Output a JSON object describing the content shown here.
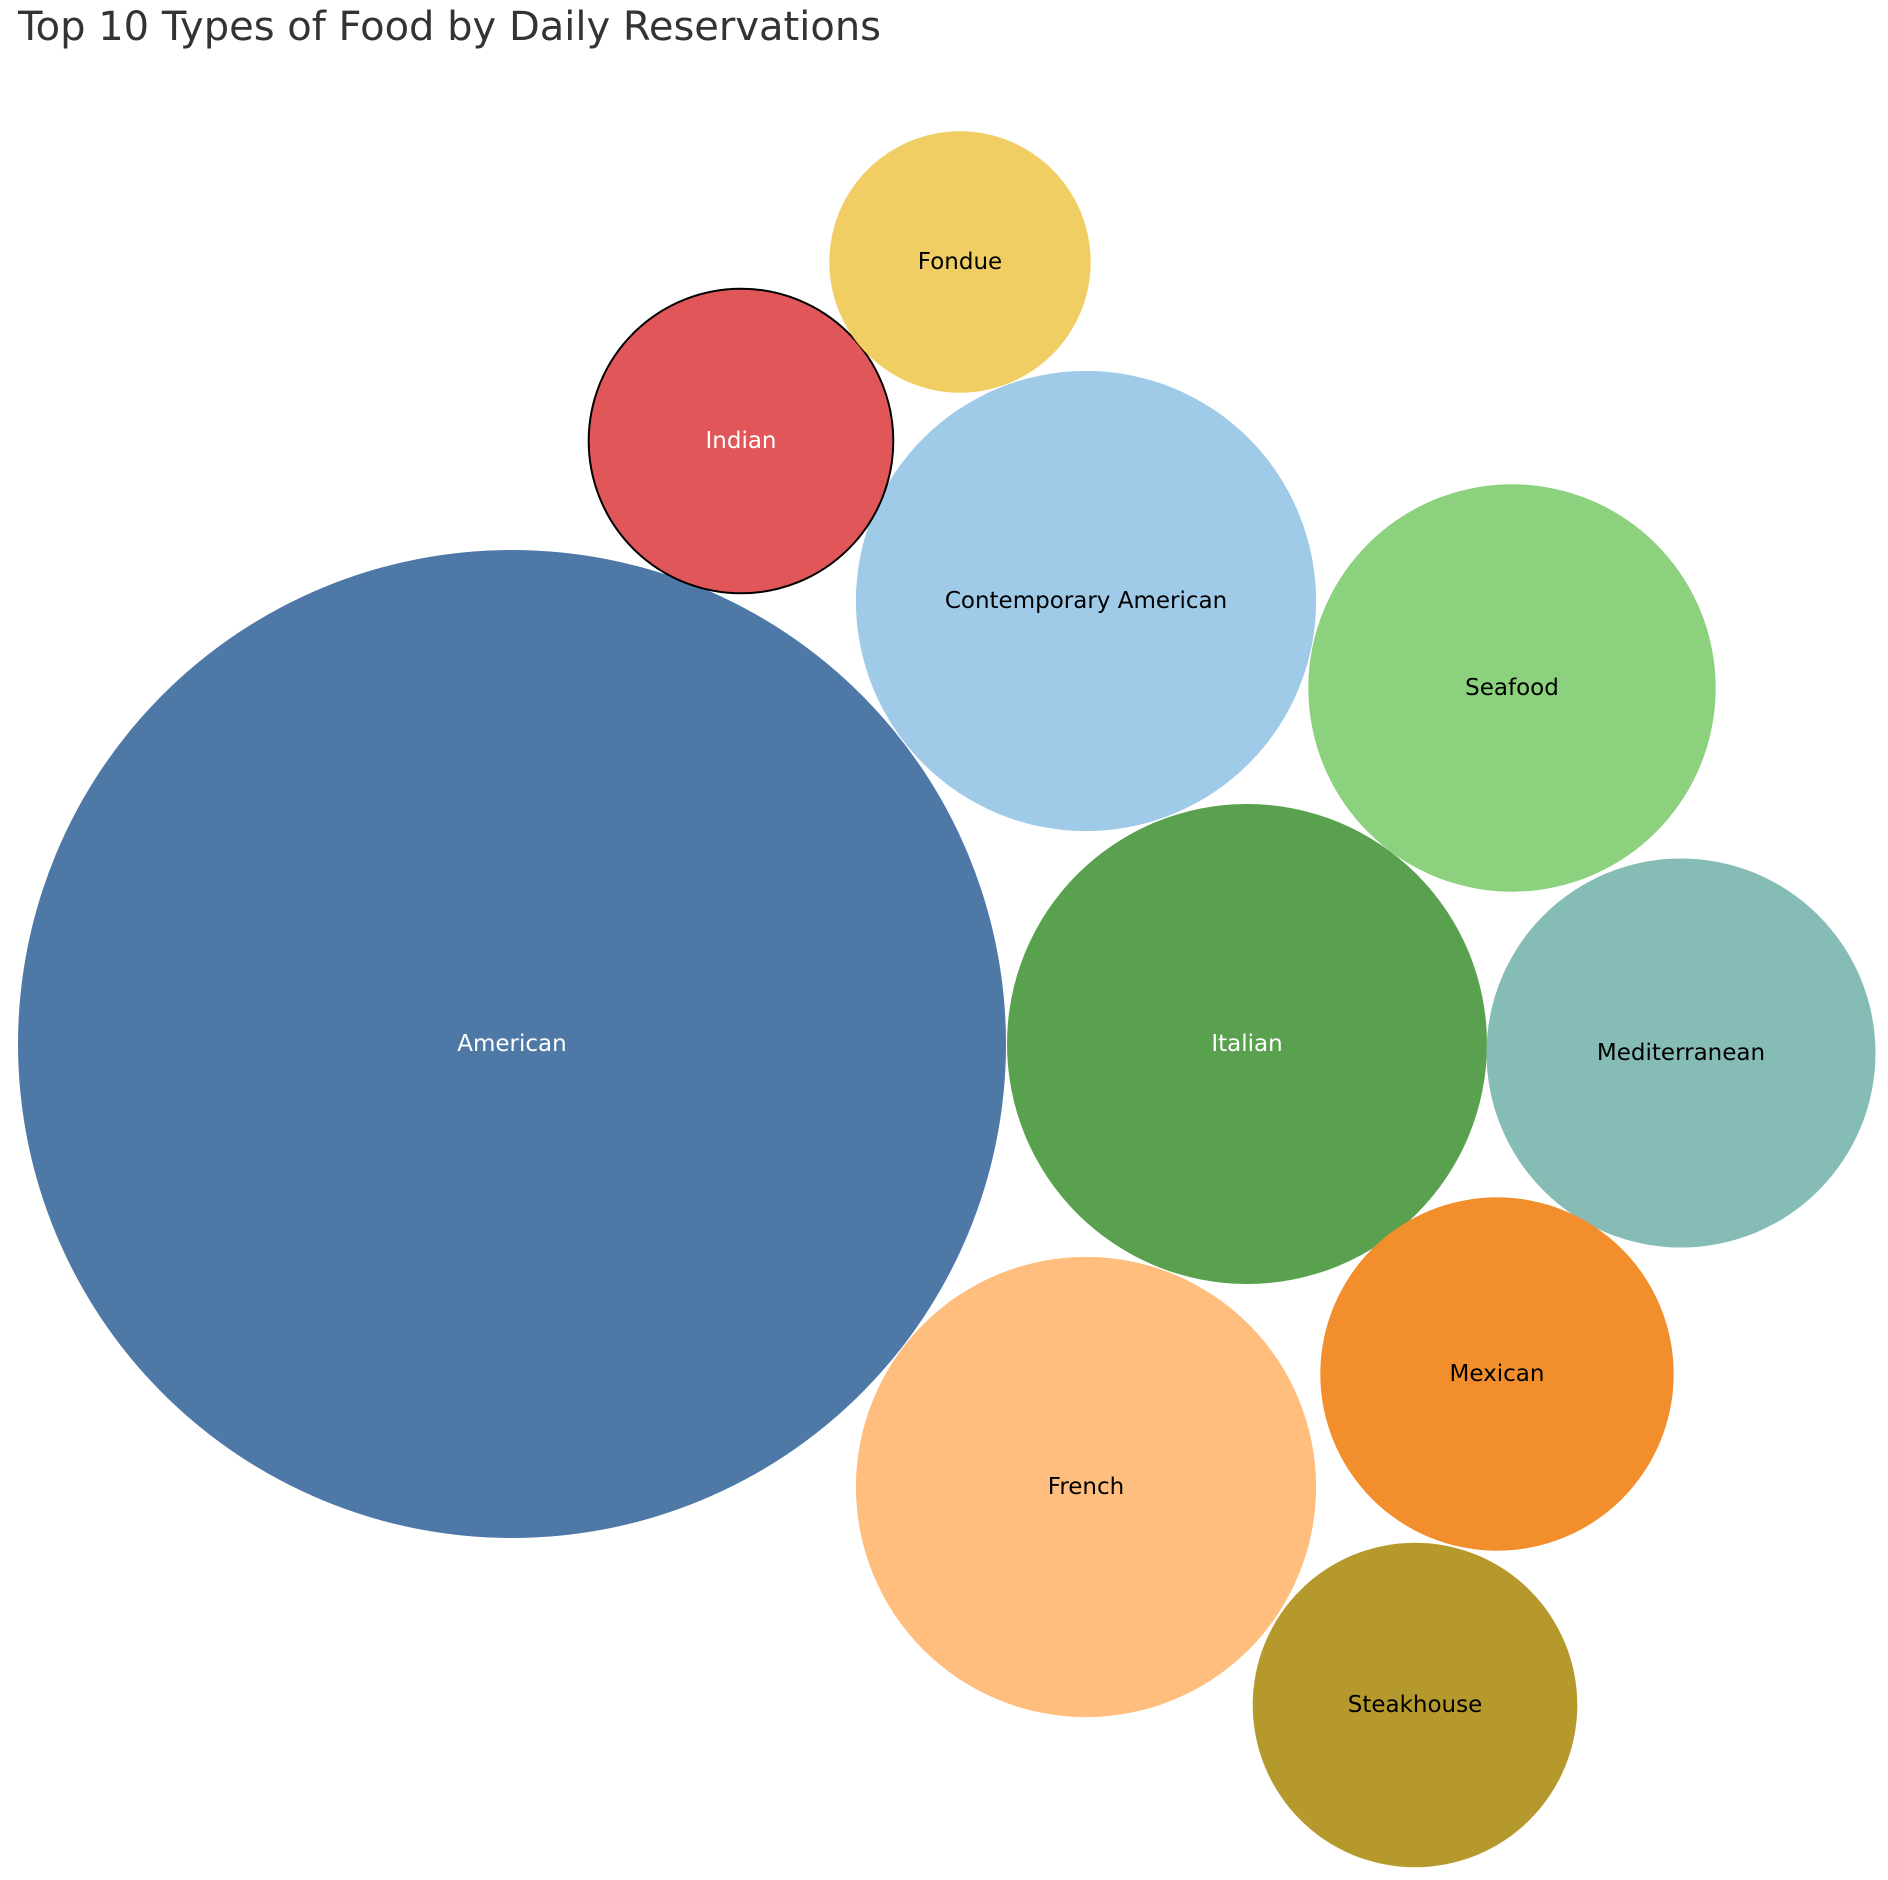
{
  "chart_data": {
    "type": "bubble",
    "title": "Top 10 Types of Food by Daily Reservations",
    "size_measure": "Daily Reservations",
    "categories": [
      "American",
      "Italian",
      "Contemporary American",
      "French",
      "Seafood",
      "Mediterranean",
      "Mexican",
      "Indian",
      "Steakhouse",
      "Fondue"
    ],
    "values": [
      1000,
      236,
      217,
      217,
      170,
      155,
      128,
      95,
      108,
      70
    ],
    "colors": [
      "#4e79a7",
      "#59a14f",
      "#a0cbe8",
      "#ffbe7d",
      "#8cd17d",
      "#86bcb6",
      "#f28e2b",
      "#e15759",
      "#b6992d",
      "#f1ce63"
    ],
    "label_colors": [
      "#ffffff",
      "#ffffff",
      "#000000",
      "#000000",
      "#000000",
      "#000000",
      "#000000",
      "#ffffff",
      "#000000",
      "#000000"
    ],
    "highlighted": "Indian"
  }
}
